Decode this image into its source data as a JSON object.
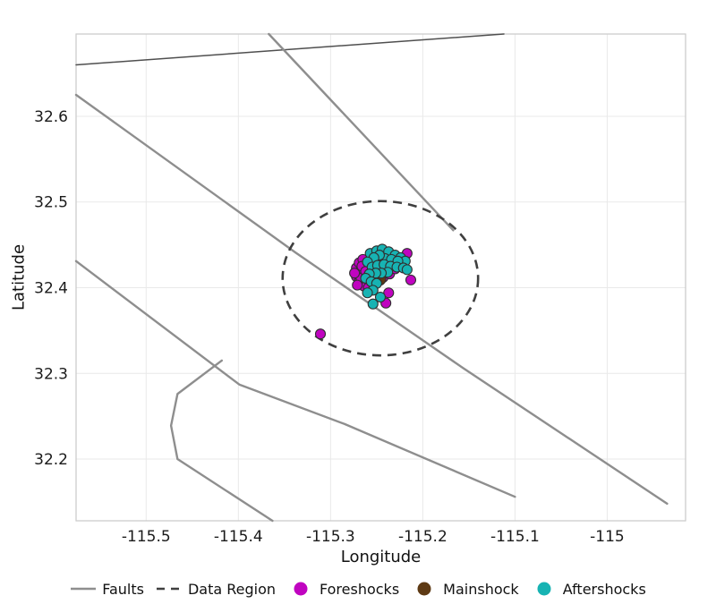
{
  "chart_data": {
    "type": "scatter",
    "title": "",
    "xlabel": "Longitude",
    "ylabel": "Latitude",
    "xlim": [
      -115.576,
      -114.915
    ],
    "ylim": [
      32.128,
      32.696
    ],
    "xticks": [
      -115.5,
      -115.4,
      -115.3,
      -115.2,
      -115.1,
      -115.0
    ],
    "xtick_labels": [
      "-115.5",
      "-115.4",
      "-115.3",
      "-115.2",
      "-115.1",
      "-115"
    ],
    "yticks": [
      32.2,
      32.3,
      32.4,
      32.5,
      32.6
    ],
    "ytick_labels": [
      "32.2",
      "32.3",
      "32.4",
      "32.5",
      "32.6"
    ],
    "grid": true,
    "grid_color": "#e9e9e9",
    "border_color": "#c9c9c9",
    "legend_position": "bottom",
    "series": [
      {
        "name": "Faults",
        "type": "line",
        "color": "#8e8e8e",
        "width": 2.4,
        "lines": [
          {
            "points": [
              [
                -115.576,
                32.66
              ],
              [
                -115.112,
                32.696
              ]
            ],
            "color": "#4f4f4f",
            "width": 1.5
          },
          {
            "points": [
              [
                -115.576,
                32.625
              ],
              [
                -115.338,
                32.441
              ],
              [
                -115.156,
                32.306
              ],
              [
                -114.935,
                32.148
              ]
            ]
          },
          {
            "points": [
              [
                -115.367,
                32.696
              ],
              [
                -115.167,
                32.467
              ]
            ]
          },
          {
            "points": [
              [
                -115.576,
                32.431
              ],
              [
                -115.399,
                32.287
              ],
              [
                -115.285,
                32.241
              ],
              [
                -115.1,
                32.156
              ]
            ]
          },
          {
            "points": [
              [
                -115.418,
                32.315
              ],
              [
                -115.466,
                32.276
              ],
              [
                -115.473,
                32.239
              ],
              [
                -115.466,
                32.2
              ],
              [
                -115.363,
                32.128
              ]
            ]
          }
        ]
      },
      {
        "name": "Data Region",
        "type": "ellipse",
        "color": "#3f3f3f",
        "width": 2.6,
        "dash": [
          10,
          7
        ],
        "center": [
          -115.246,
          32.411
        ],
        "rx": 0.106,
        "ry": 0.09
      },
      {
        "name": "Foreshocks",
        "type": "scatter",
        "color": "#c004c0",
        "marker_radius": 5.5,
        "marker_stroke": "#303030",
        "points": [
          [
            -115.311,
            32.346
          ],
          [
            -115.272,
            32.423
          ],
          [
            -115.269,
            32.429
          ],
          [
            -115.265,
            32.433
          ],
          [
            -115.261,
            32.427
          ],
          [
            -115.268,
            32.419
          ],
          [
            -115.272,
            32.413
          ],
          [
            -115.269,
            32.407
          ],
          [
            -115.264,
            32.402
          ],
          [
            -115.259,
            32.4
          ],
          [
            -115.267,
            32.411
          ],
          [
            -115.253,
            32.41
          ],
          [
            -115.243,
            32.412
          ],
          [
            -115.236,
            32.416
          ],
          [
            -115.23,
            32.422
          ],
          [
            -115.224,
            32.428
          ],
          [
            -115.217,
            32.44
          ],
          [
            -115.213,
            32.409
          ],
          [
            -115.237,
            32.394
          ],
          [
            -115.24,
            32.382
          ],
          [
            -115.259,
            32.417
          ],
          [
            -115.274,
            32.417
          ],
          [
            -115.266,
            32.425
          ],
          [
            -115.271,
            32.403
          ],
          [
            -115.262,
            32.419
          ]
        ]
      },
      {
        "name": "Mainshock",
        "type": "scatter",
        "color": "#5e3a14",
        "marker_radius": 7,
        "marker_stroke": "#303030",
        "points": [
          [
            -115.247,
            32.41
          ]
        ]
      },
      {
        "name": "Aftershocks",
        "type": "scatter",
        "color": "#17b3b3",
        "marker_radius": 5.5,
        "marker_stroke": "#303030",
        "points": [
          [
            -115.257,
            32.44
          ],
          [
            -115.25,
            32.443
          ],
          [
            -115.244,
            32.445
          ],
          [
            -115.237,
            32.442
          ],
          [
            -115.23,
            32.438
          ],
          [
            -115.224,
            32.435
          ],
          [
            -115.219,
            32.431
          ],
          [
            -115.241,
            32.434
          ],
          [
            -115.234,
            32.433
          ],
          [
            -115.227,
            32.431
          ],
          [
            -115.247,
            32.438
          ],
          [
            -115.253,
            32.435
          ],
          [
            -115.26,
            32.43
          ],
          [
            -115.255,
            32.424
          ],
          [
            -115.249,
            32.426
          ],
          [
            -115.242,
            32.427
          ],
          [
            -115.235,
            32.425
          ],
          [
            -115.228,
            32.424
          ],
          [
            -115.221,
            32.423
          ],
          [
            -115.217,
            32.421
          ],
          [
            -115.238,
            32.418
          ],
          [
            -115.245,
            32.417
          ],
          [
            -115.251,
            32.417
          ],
          [
            -115.258,
            32.416
          ],
          [
            -115.262,
            32.411
          ],
          [
            -115.256,
            32.407
          ],
          [
            -115.25,
            32.405
          ],
          [
            -115.254,
            32.397
          ],
          [
            -115.26,
            32.394
          ],
          [
            -115.246,
            32.389
          ],
          [
            -115.254,
            32.381
          ]
        ]
      }
    ]
  },
  "legend": {
    "items": [
      {
        "label": "Faults",
        "swatch": "line",
        "color": "#8e8e8e"
      },
      {
        "label": "Data Region",
        "swatch": "dashed-line",
        "color": "#3f3f3f"
      },
      {
        "label": "Foreshocks",
        "swatch": "dot",
        "color": "#c004c0"
      },
      {
        "label": "Mainshock",
        "swatch": "dot",
        "color": "#5e3a14"
      },
      {
        "label": "Aftershocks",
        "swatch": "dot",
        "color": "#17b3b3"
      }
    ]
  }
}
